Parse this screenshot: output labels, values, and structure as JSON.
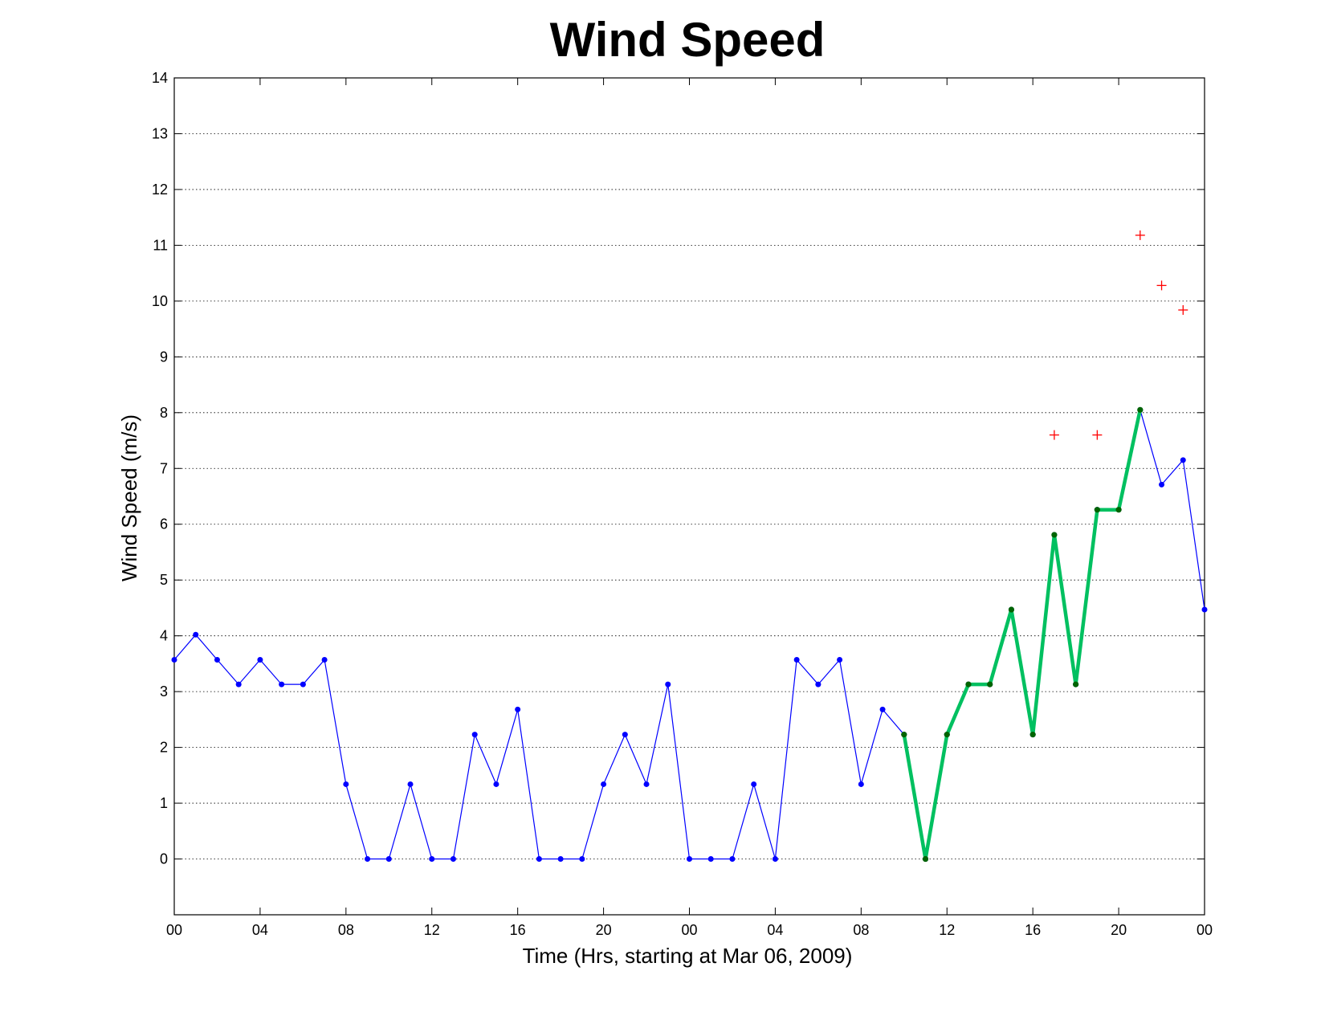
{
  "chart_data": {
    "type": "line",
    "title": "Wind Speed",
    "xlabel": "Time (Hrs, starting at Mar 06, 2009)",
    "ylabel": "Wind Speed (m/s)",
    "xlim": [
      0,
      48
    ],
    "ylim": [
      -1,
      14
    ],
    "grid": "horizontal-dotted",
    "x_ticks": [
      {
        "x": 0,
        "label": "00"
      },
      {
        "x": 4,
        "label": "04"
      },
      {
        "x": 8,
        "label": "08"
      },
      {
        "x": 12,
        "label": "12"
      },
      {
        "x": 16,
        "label": "16"
      },
      {
        "x": 20,
        "label": "20"
      },
      {
        "x": 24,
        "label": "00"
      },
      {
        "x": 28,
        "label": "04"
      },
      {
        "x": 32,
        "label": "08"
      },
      {
        "x": 36,
        "label": "12"
      },
      {
        "x": 40,
        "label": "16"
      },
      {
        "x": 44,
        "label": "20"
      },
      {
        "x": 48,
        "label": "00"
      }
    ],
    "y_ticks": [
      0,
      1,
      2,
      3,
      4,
      5,
      6,
      7,
      8,
      9,
      10,
      11,
      12,
      13,
      14
    ],
    "series": [
      {
        "style": "thin-line-dots",
        "color": "#0000ff",
        "points": [
          [
            0,
            3.57
          ],
          [
            1,
            4.02
          ],
          [
            2,
            3.57
          ],
          [
            3,
            3.13
          ],
          [
            4,
            3.57
          ],
          [
            5,
            3.13
          ],
          [
            6,
            3.13
          ],
          [
            7,
            3.57
          ],
          [
            8,
            1.34
          ],
          [
            9,
            0
          ],
          [
            10,
            0
          ],
          [
            11,
            1.34
          ],
          [
            12,
            0
          ],
          [
            13,
            0
          ],
          [
            14,
            2.23
          ],
          [
            15,
            1.34
          ],
          [
            16,
            2.68
          ],
          [
            17,
            0
          ],
          [
            18,
            0
          ],
          [
            19,
            0
          ],
          [
            20,
            1.34
          ],
          [
            21,
            2.23
          ],
          [
            22,
            1.34
          ],
          [
            23,
            3.13
          ],
          [
            24,
            0
          ],
          [
            25,
            0
          ],
          [
            26,
            0
          ],
          [
            27,
            1.34
          ],
          [
            28,
            0
          ],
          [
            29,
            3.57
          ],
          [
            30,
            3.13
          ],
          [
            31,
            3.57
          ],
          [
            32,
            1.34
          ],
          [
            33,
            2.68
          ],
          [
            34,
            2.23
          ],
          [
            35,
            0
          ],
          [
            36,
            2.23
          ],
          [
            37,
            3.13
          ],
          [
            38,
            3.13
          ],
          [
            39,
            4.47
          ],
          [
            40,
            2.23
          ],
          [
            41,
            5.81
          ],
          [
            42,
            3.13
          ],
          [
            43,
            6.26
          ],
          [
            44,
            6.26
          ],
          [
            45,
            8.05
          ],
          [
            46,
            6.71
          ],
          [
            47,
            7.15
          ],
          [
            48,
            4.47
          ]
        ]
      },
      {
        "style": "thick-line-dots",
        "color": "#00c060",
        "marker_color": "#006400",
        "points": [
          [
            34,
            2.23
          ],
          [
            35,
            0
          ],
          [
            36,
            2.23
          ],
          [
            37,
            3.13
          ],
          [
            38,
            3.13
          ],
          [
            39,
            4.47
          ],
          [
            40,
            2.23
          ],
          [
            41,
            5.81
          ],
          [
            42,
            3.13
          ],
          [
            43,
            6.26
          ],
          [
            44,
            6.26
          ],
          [
            45,
            8.05
          ]
        ]
      },
      {
        "style": "plus-markers",
        "color": "#ff0000",
        "points": [
          [
            41,
            7.6
          ],
          [
            43,
            7.6
          ],
          [
            45,
            11.18
          ],
          [
            46,
            10.28
          ],
          [
            47,
            9.84
          ]
        ]
      }
    ]
  }
}
